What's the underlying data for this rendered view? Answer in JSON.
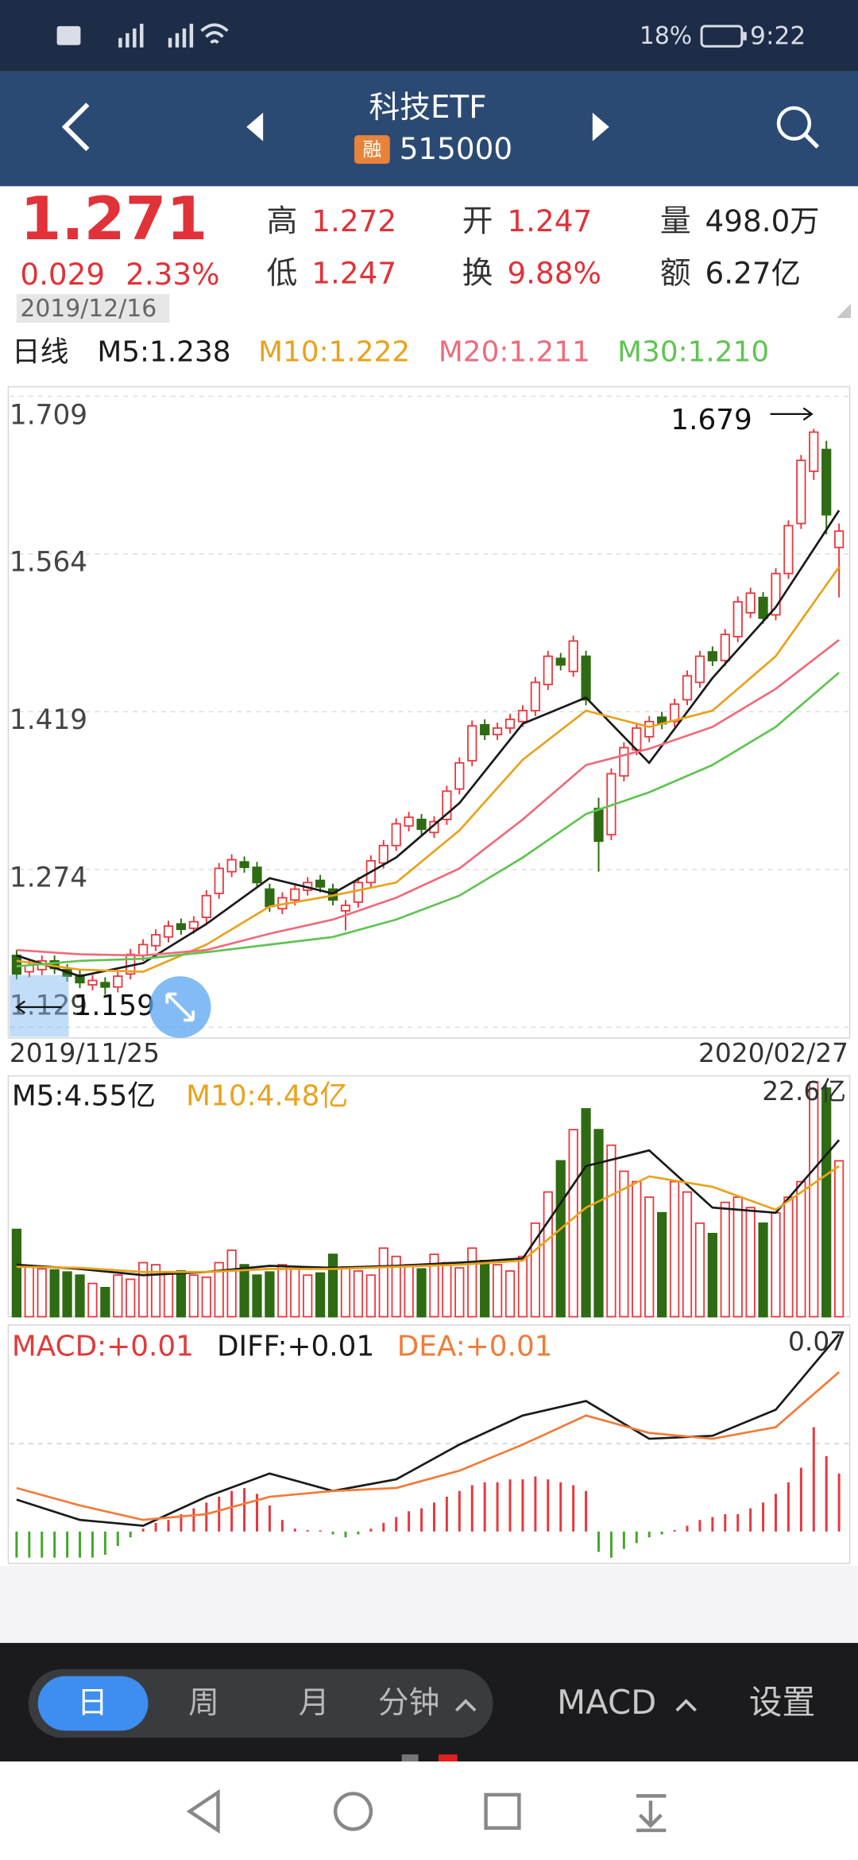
{
  "status_bar": {
    "battery": "18%",
    "time": "9:22"
  },
  "header": {
    "title": "科技ETF",
    "badge": "融",
    "code": "515000"
  },
  "quote": {
    "price": "1.271",
    "change": "0.029",
    "change_percent": "2.33%",
    "date": "2019/12/16",
    "fields": [
      {
        "label": "高",
        "value": "1.272"
      },
      {
        "label": "低",
        "value": "1.247"
      },
      {
        "label": "开",
        "value": "1.247"
      },
      {
        "label": "换",
        "value": "9.88%"
      },
      {
        "label": "量",
        "value": "498.0万"
      },
      {
        "label": "额",
        "value": "6.27亿"
      }
    ]
  },
  "chart_data": [
    {
      "type": "candlestick",
      "period": "日线",
      "date_labels": [
        "2019/11/25",
        "2020/02/27"
      ],
      "open": [
        1.195,
        1.18,
        1.182,
        1.19,
        1.182,
        1.177,
        1.168,
        1.17,
        1.166,
        1.178,
        1.195,
        1.204,
        1.212,
        1.224,
        1.22,
        1.23,
        1.252,
        1.272,
        1.281,
        1.276,
        1.256,
        1.238,
        1.246,
        1.255,
        1.264,
        1.256,
        1.236,
        1.244,
        1.262,
        1.28,
        1.296,
        1.314,
        1.32,
        1.308,
        1.32,
        1.348,
        1.374,
        1.407,
        1.398,
        1.404,
        1.41,
        1.42,
        1.444,
        1.468,
        1.456,
        1.47,
        1.33,
        1.306,
        1.36,
        1.384,
        1.396,
        1.414,
        1.41,
        1.43,
        1.446,
        1.474,
        1.466,
        1.488,
        1.51,
        1.524,
        1.508,
        1.546,
        1.592,
        1.64,
        1.66,
        1.57
      ],
      "high": [
        1.2,
        1.191,
        1.195,
        1.195,
        1.187,
        1.182,
        1.177,
        1.175,
        1.181,
        1.201,
        1.21,
        1.219,
        1.227,
        1.229,
        1.231,
        1.255,
        1.28,
        1.288,
        1.286,
        1.281,
        1.261,
        1.253,
        1.261,
        1.267,
        1.269,
        1.261,
        1.246,
        1.267,
        1.287,
        1.301,
        1.321,
        1.327,
        1.325,
        1.323,
        1.351,
        1.377,
        1.411,
        1.412,
        1.409,
        1.417,
        1.425,
        1.451,
        1.475,
        1.473,
        1.489,
        1.475,
        1.34,
        1.367,
        1.391,
        1.409,
        1.415,
        1.419,
        1.431,
        1.457,
        1.475,
        1.479,
        1.495,
        1.525,
        1.533,
        1.529,
        1.551,
        1.595,
        1.655,
        1.679,
        1.668,
        1.592
      ],
      "low": [
        1.173,
        1.175,
        1.177,
        1.178,
        1.171,
        1.165,
        1.163,
        1.159,
        1.161,
        1.173,
        1.19,
        1.199,
        1.207,
        1.214,
        1.215,
        1.225,
        1.247,
        1.267,
        1.271,
        1.257,
        1.235,
        1.233,
        1.241,
        1.25,
        1.253,
        1.241,
        1.218,
        1.239,
        1.257,
        1.275,
        1.291,
        1.309,
        1.306,
        1.303,
        1.315,
        1.343,
        1.369,
        1.393,
        1.393,
        1.399,
        1.405,
        1.415,
        1.439,
        1.457,
        1.451,
        1.425,
        1.272,
        1.301,
        1.355,
        1.379,
        1.391,
        1.403,
        1.405,
        1.425,
        1.441,
        1.461,
        1.461,
        1.483,
        1.505,
        1.5,
        1.503,
        1.541,
        1.587,
        1.632,
        1.582,
        1.524
      ],
      "close": [
        1.178,
        1.186,
        1.19,
        1.183,
        1.176,
        1.17,
        1.172,
        1.166,
        1.176,
        1.196,
        1.205,
        1.214,
        1.222,
        1.219,
        1.226,
        1.25,
        1.275,
        1.283,
        1.276,
        1.262,
        1.24,
        1.248,
        1.256,
        1.262,
        1.258,
        1.246,
        1.241,
        1.262,
        1.282,
        1.296,
        1.316,
        1.322,
        1.311,
        1.318,
        1.346,
        1.372,
        1.406,
        1.398,
        1.404,
        1.412,
        1.42,
        1.446,
        1.47,
        1.462,
        1.484,
        1.43,
        1.3,
        1.362,
        1.386,
        1.404,
        1.41,
        1.408,
        1.426,
        1.452,
        1.47,
        1.466,
        1.49,
        1.52,
        1.528,
        1.505,
        1.546,
        1.59,
        1.65,
        1.676,
        1.6,
        1.585
      ],
      "up_color": "#e8383d",
      "down_color": "#2e6b12",
      "ylim": [
        1.129,
        1.709
      ],
      "yticks": [
        1.129,
        1.274,
        1.419,
        1.564,
        1.709
      ],
      "grid": true,
      "max_label": 1.679,
      "min_label": 1.159,
      "line_x": [
        0,
        5,
        10,
        15,
        20,
        25,
        30,
        35,
        40,
        45,
        50,
        55,
        60,
        65
      ],
      "series": [
        {
          "name": "M5:1.238",
          "color": "#1a1a1a",
          "values": [
            1.195,
            1.176,
            1.188,
            1.224,
            1.266,
            1.252,
            1.285,
            1.335,
            1.408,
            1.432,
            1.372,
            1.45,
            1.515,
            1.604
          ]
        },
        {
          "name": "M10:1.222",
          "color": "#e9a21b",
          "values": [
            1.19,
            1.182,
            1.18,
            1.205,
            1.24,
            1.25,
            1.262,
            1.31,
            1.375,
            1.42,
            1.405,
            1.42,
            1.47,
            1.552
          ]
        },
        {
          "name": "M20:1.211",
          "color": "#ef6b7b",
          "values": [
            1.2,
            1.196,
            1.195,
            1.2,
            1.215,
            1.228,
            1.248,
            1.275,
            1.32,
            1.37,
            1.385,
            1.405,
            1.44,
            1.485
          ]
        },
        {
          "name": "M30:1.210",
          "color": "#5fc451",
          "values": [
            1.185,
            1.19,
            1.192,
            1.198,
            1.205,
            1.212,
            1.228,
            1.25,
            1.285,
            1.325,
            1.345,
            1.37,
            1.405,
            1.455
          ]
        }
      ]
    },
    {
      "type": "bar",
      "values": [
        8.4,
        4.8,
        4.6,
        4.5,
        4.3,
        4.0,
        3.2,
        2.8,
        4.0,
        3.6,
        5.2,
        5.0,
        4.3,
        4.4,
        4.0,
        3.8,
        5.2,
        6.4,
        5.0,
        4.0,
        4.3,
        5.0,
        4.6,
        4.0,
        4.2,
        6.0,
        4.8,
        4.4,
        4.0,
        6.6,
        5.8,
        5.0,
        4.6,
        6.0,
        5.2,
        4.7,
        6.6,
        5.4,
        5.0,
        4.4,
        5.8,
        9.0,
        12.0,
        15.0,
        18.0,
        20.0,
        18.0,
        16.5,
        14.0,
        13.0,
        11.5,
        10.0,
        13.0,
        12.0,
        9.0,
        8.0,
        11.0,
        11.5,
        10.5,
        9.0,
        10.0,
        11.5,
        13.0,
        22.6,
        22.0,
        15.0
      ],
      "up_color": "#e8383d",
      "down_color": "#2e6b12",
      "ylim": [
        0,
        22.6
      ],
      "yticks": [
        {
          "value": 22.6,
          "label": "22.6亿"
        }
      ],
      "line_x": [
        0,
        5,
        10,
        15,
        20,
        25,
        30,
        35,
        40,
        45,
        50,
        55,
        60,
        65
      ],
      "series": [
        {
          "name": "M5:4.55亿",
          "color": "#1a1a1a",
          "values": [
            5.0,
            4.6,
            4.0,
            4.3,
            4.9,
            4.7,
            4.9,
            5.2,
            5.6,
            14.5,
            16.0,
            10.5,
            10.0,
            17.0
          ]
        },
        {
          "name": "M10:4.48亿",
          "color": "#e9a21b",
          "values": [
            4.8,
            4.7,
            4.3,
            4.3,
            4.6,
            4.6,
            4.8,
            5.0,
            5.4,
            10.5,
            13.5,
            12.5,
            10.3,
            14.5
          ]
        }
      ]
    },
    {
      "type": "macd",
      "name": "MACD:+0.01",
      "values": [
        -0.009,
        -0.009,
        -0.009,
        -0.009,
        -0.009,
        -0.009,
        -0.009,
        -0.008,
        -0.005,
        -0.002,
        0.001,
        0.003,
        0.004,
        0.006,
        0.008,
        0.01,
        0.012,
        0.014,
        0.015,
        0.013,
        0.009,
        0.004,
        0.001,
        0.0005,
        0.0003,
        -0.001,
        -0.002,
        -0.001,
        0.001,
        0.003,
        0.005,
        0.007,
        0.008,
        0.01,
        0.012,
        0.014,
        0.016,
        0.017,
        0.017,
        0.018,
        0.018,
        0.019,
        0.018,
        0.017,
        0.016,
        0.014,
        -0.007,
        -0.009,
        -0.006,
        -0.004,
        -0.002,
        -0.001,
        0.0005,
        0.002,
        0.004,
        0.005,
        0.006,
        0.006,
        0.008,
        0.01,
        0.013,
        0.017,
        0.022,
        0.036,
        0.026,
        0.02
      ],
      "up_color": "#e8383d",
      "down_color": "#43a82a",
      "ylim": [
        -0.011,
        0.07
      ],
      "yticks": [
        0.07
      ],
      "line_x": [
        0,
        5,
        10,
        15,
        20,
        25,
        30,
        35,
        40,
        45,
        50,
        55,
        60,
        65
      ],
      "series": [
        {
          "name": "DIFF:+0.01",
          "color": "#1a1a1a",
          "values": [
            0.011,
            0.004,
            0.002,
            0.012,
            0.02,
            0.014,
            0.018,
            0.03,
            0.04,
            0.045,
            0.032,
            0.033,
            0.042,
            0.068
          ]
        },
        {
          "name": "DEA:+0.01",
          "color": "#f07c3a",
          "values": [
            0.015,
            0.009,
            0.004,
            0.006,
            0.012,
            0.014,
            0.015,
            0.021,
            0.03,
            0.04,
            0.034,
            0.032,
            0.036,
            0.055
          ]
        }
      ]
    }
  ],
  "toolbar": {
    "periods": [
      "日",
      "周",
      "月",
      "分钟"
    ],
    "indicator": "MACD",
    "settings": "设置"
  }
}
